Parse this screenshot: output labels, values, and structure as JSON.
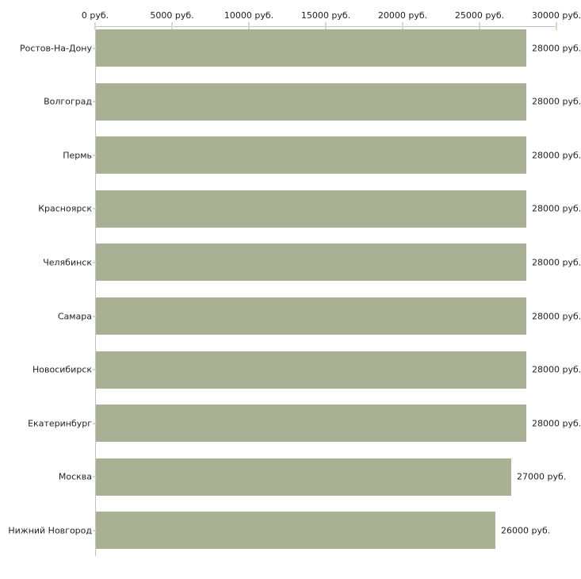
{
  "chart_data": {
    "type": "bar",
    "orientation": "horizontal",
    "title": "",
    "categories": [
      "Ростов-На-Дону",
      "Волгоград",
      "Пермь",
      "Красноярск",
      "Челябинск",
      "Самара",
      "Новосибирск",
      "Екатеринбург",
      "Москва",
      "Нижний Новгород"
    ],
    "values": [
      28000,
      28000,
      28000,
      28000,
      28000,
      28000,
      28000,
      28000,
      27000,
      26000
    ],
    "bar_value_labels": [
      "28000 руб.",
      "28000 руб.",
      "28000 руб.",
      "28000 руб.",
      "28000 руб.",
      "28000 руб.",
      "28000 руб.",
      "28000 руб.",
      "27000 руб.",
      "26000 руб."
    ],
    "unit": "руб.",
    "x_axis": {
      "position": "top",
      "range": [
        0,
        30000
      ],
      "ticks": [
        0,
        5000,
        10000,
        15000,
        20000,
        25000,
        30000
      ],
      "tick_labels": [
        "0 руб.",
        "5000 руб.",
        "10000 руб.",
        "15000 руб.",
        "20000 руб.",
        "25000 руб.",
        "30000 руб."
      ]
    },
    "grid": false,
    "legend": null,
    "colors": {
      "bar": "#a9b194",
      "axis_line": "#c2c2c2",
      "tick_mark": "#d9d9bc",
      "text": "#222222"
    }
  }
}
